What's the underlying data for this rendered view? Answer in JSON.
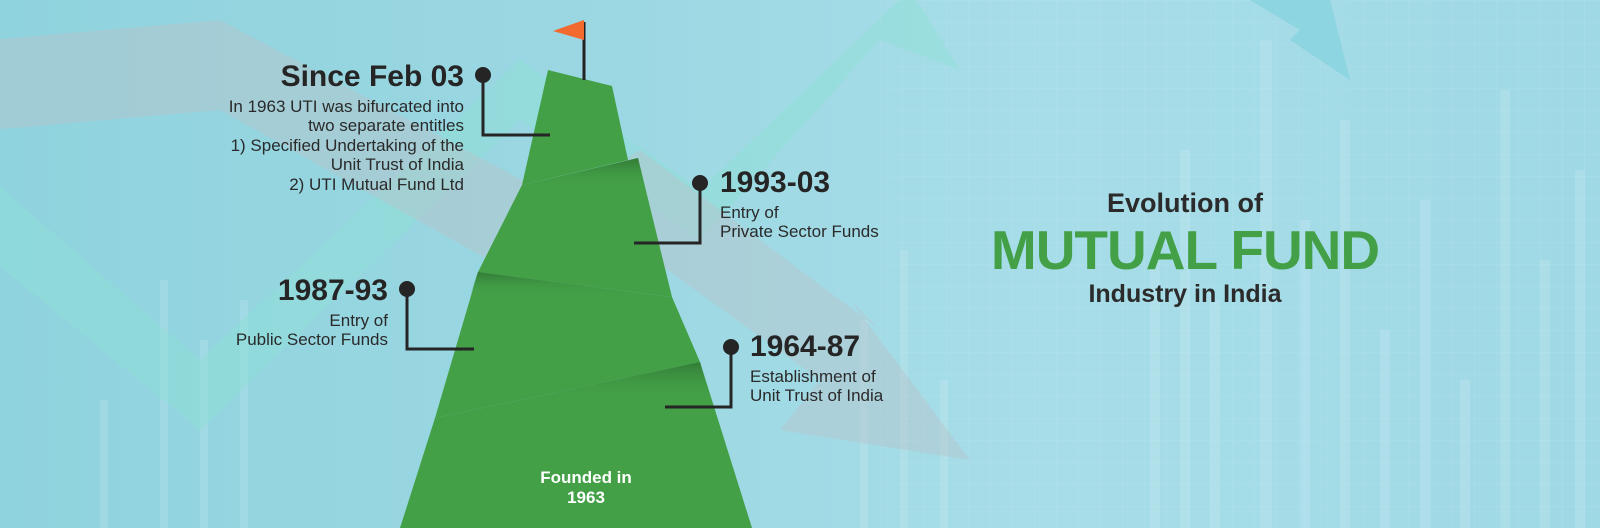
{
  "colors": {
    "background": "#9ad7e2",
    "mountain_green": "#43a047",
    "mountain_shadow": "#327a38",
    "flag": "#f26a2e",
    "title_accent": "#43a047",
    "text_dark": "#252525"
  },
  "icons": {
    "flag": "flag-icon",
    "timeline_dot": "timeline-dot-icon"
  },
  "milestones": [
    {
      "year": "Since Feb 03",
      "lines": [
        "In 1963 UTI was bifurcated into",
        "two separate entitles",
        "1) Specified Undertaking of the",
        "Unit Trust of India",
        "2) UTI Mutual Fund Ltd"
      ]
    },
    {
      "year": "1993-03",
      "lines": [
        "Entry of",
        "Private Sector Funds"
      ]
    },
    {
      "year": "1987-93",
      "lines": [
        "Entry of",
        "Public Sector Funds"
      ]
    },
    {
      "year": "1964-87",
      "lines": [
        "Establishment of",
        "Unit Trust of India"
      ]
    }
  ],
  "founded": {
    "line1": "Founded in",
    "line2": "1963"
  },
  "title": {
    "line1": "Evolution of",
    "line2": "MUTUAL FUND",
    "line3": "Industry in India"
  }
}
